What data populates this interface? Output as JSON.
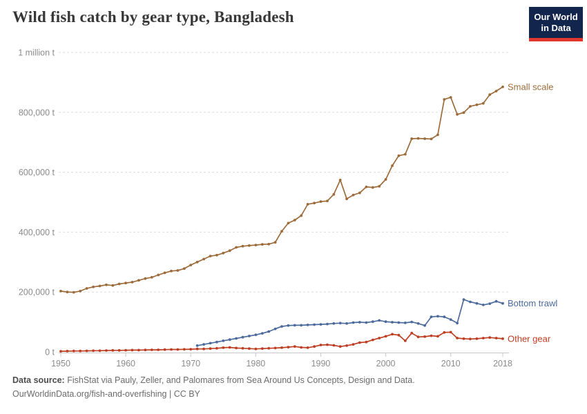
{
  "header": {
    "title": "Wild fish catch by gear type, Bangladesh",
    "logo": {
      "line1": "Our World",
      "line2": "in Data"
    }
  },
  "footer": {
    "source_label": "Data source:",
    "source_text": " FishStat via Pauly, Zeller, and Palomares from Sea Around Us Concepts, Design and Data.",
    "link": "OurWorldinData.org/fish-and-overfishing",
    "separator": " | ",
    "license": "CC BY"
  },
  "colors": {
    "small_scale": "#9C6B39",
    "bottom_trawl": "#4C6A9C",
    "other_gear": "#BE3E23",
    "grid": "#dcdcdc",
    "axis": "#c8c8c8",
    "tick_text": "#8b8b8d"
  },
  "chart_data": {
    "type": "line",
    "title": "Wild fish catch by gear type, Bangladesh",
    "unit": "tonnes",
    "xlim": [
      1950,
      2018
    ],
    "ylim": [
      0,
      1000000
    ],
    "grid": "horizontal-dashed",
    "legend_position": "right-end-labels",
    "x_ticks": [
      1950,
      1960,
      1970,
      1980,
      1990,
      2000,
      2010,
      2018
    ],
    "y_ticks": [
      {
        "value": 0,
        "label": "0 t"
      },
      {
        "value": 200000,
        "label": "200,000 t"
      },
      {
        "value": 400000,
        "label": "400,000 t"
      },
      {
        "value": 600000,
        "label": "600,000 t"
      },
      {
        "value": 800000,
        "label": "800,000 t"
      },
      {
        "value": 1000000,
        "label": "1 million t"
      }
    ],
    "series": [
      {
        "name": "Small scale",
        "color": "#9C6B39",
        "start_year": 1950,
        "values": [
          203000,
          200000,
          199000,
          203000,
          212000,
          217000,
          220000,
          224000,
          222000,
          227000,
          230000,
          233000,
          239000,
          245000,
          249000,
          257000,
          264000,
          270000,
          272000,
          278000,
          290000,
          300000,
          310000,
          320000,
          323000,
          330000,
          338000,
          349000,
          353000,
          355000,
          357000,
          359000,
          360000,
          366000,
          403000,
          430000,
          440000,
          455000,
          493000,
          497000,
          502000,
          504000,
          526000,
          574000,
          511000,
          524000,
          531000,
          551000,
          549000,
          553000,
          576000,
          622000,
          655000,
          660000,
          712000,
          713000,
          712000,
          711000,
          725000,
          843000,
          850000,
          793000,
          799000,
          820000,
          825000,
          830000,
          859000,
          871000,
          885000
        ]
      },
      {
        "name": "Bottom trawl",
        "color": "#4C6A9C",
        "start_year": 1971,
        "values": [
          21000,
          25000,
          29000,
          33000,
          37000,
          41000,
          45000,
          49000,
          53000,
          57000,
          62000,
          68000,
          77000,
          85000,
          88000,
          89000,
          89000,
          90000,
          91000,
          92000,
          93000,
          95000,
          96000,
          95000,
          98000,
          99000,
          98000,
          101000,
          105000,
          101000,
          99000,
          98000,
          97000,
          100000,
          95000,
          88000,
          117000,
          119000,
          117000,
          108000,
          96000,
          175000,
          167000,
          162000,
          157000,
          161000,
          169000,
          162000
        ]
      },
      {
        "name": "Other gear",
        "color": "#BE3E23",
        "start_year": 1950,
        "values": [
          2000,
          2500,
          3000,
          3000,
          3500,
          4000,
          4000,
          4500,
          5000,
          5000,
          5500,
          6000,
          6000,
          6500,
          7000,
          7000,
          7500,
          8000,
          8000,
          8500,
          9000,
          10000,
          10000,
          11000,
          12000,
          14000,
          15000,
          13000,
          12000,
          11000,
          10000,
          11000,
          12000,
          13000,
          14000,
          16000,
          18000,
          15000,
          14000,
          18000,
          23000,
          24000,
          22000,
          18000,
          21000,
          25000,
          31000,
          33000,
          40000,
          46000,
          52000,
          59000,
          56000,
          37000,
          63000,
          50000,
          51000,
          54000,
          52000,
          65000,
          66000,
          46000,
          44000,
          43000,
          44000,
          46000,
          48000,
          46000,
          44000
        ]
      }
    ]
  }
}
